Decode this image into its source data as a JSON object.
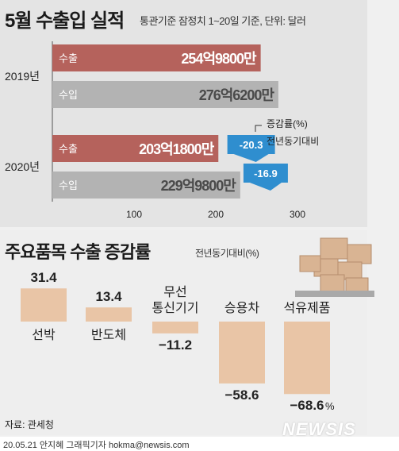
{
  "header": {
    "title": "5월 수출입 실적",
    "subtitle": "통관기준 잠정치 1~20일 기준, 단위: 달러"
  },
  "colors": {
    "export": "#b5625c",
    "import": "#b3b3b3",
    "arrow": "#2f8ecf",
    "product": "#e9c5a6"
  },
  "chart_data": [
    {
      "type": "bar",
      "orientation": "horizontal",
      "title": "5월 수출입 실적",
      "subtitle": "통관기준 잠정치 1~20일 기준, 단위: 달러",
      "unit": "억 달러",
      "categories": [
        "2019년",
        "2020년"
      ],
      "series": [
        {
          "name": "수출",
          "values": [
            254.98,
            203.18
          ],
          "labels": [
            "254억9800만",
            "203억1800만"
          ]
        },
        {
          "name": "수입",
          "values": [
            276.62,
            229.98
          ],
          "labels": [
            "276억6200만",
            "229억9800만"
          ]
        }
      ],
      "xticks": [
        "100",
        "200",
        "300"
      ],
      "xlim": [
        0,
        300
      ],
      "change_legend": [
        "증감률(%)",
        "전년동기대비"
      ],
      "changes": [
        {
          "name": "수출",
          "value": -20.3,
          "label": "-20.3"
        },
        {
          "name": "수입",
          "value": -16.9,
          "label": "-16.9"
        }
      ]
    },
    {
      "type": "bar",
      "title": "주요품목 수출 증감률",
      "subtitle": "전년동기대비(%)",
      "categories": [
        "선박",
        "반도체",
        "무선\n통신기기",
        "승용차",
        "석유제품"
      ],
      "values": [
        31.4,
        13.4,
        -11.2,
        -58.6,
        -68.6
      ],
      "labels": [
        "31.4",
        "13.4",
        "−11.2",
        "−58.6",
        "−68.6"
      ],
      "unit_suffix": "%",
      "ylim": [
        -70,
        35
      ]
    }
  ],
  "footer": {
    "source": "자료: 관세청",
    "credit": "20.05.21 안지혜 그래픽기자 hokma@newsis.com",
    "watermark": "NEWSIS"
  }
}
